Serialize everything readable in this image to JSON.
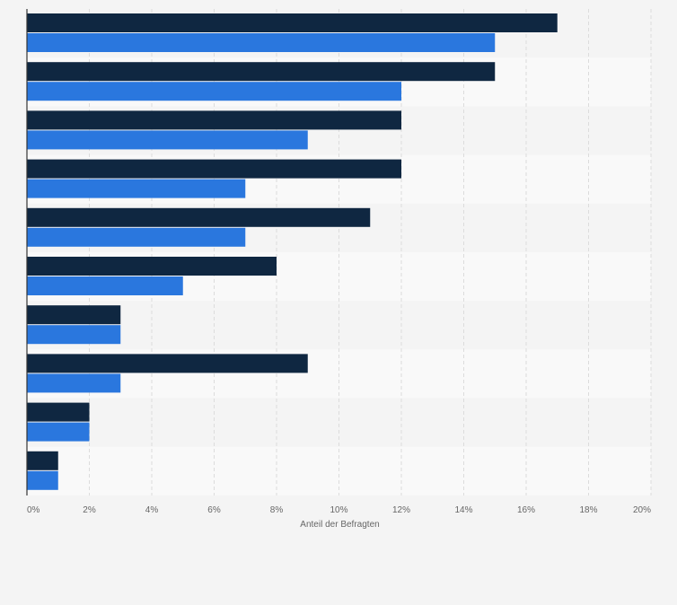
{
  "chart_data": {
    "type": "bar",
    "orientation": "horizontal",
    "categories": [
      "",
      "",
      "",
      "",
      "",
      "",
      "",
      "",
      "",
      ""
    ],
    "series": [
      {
        "name": "",
        "color": "#0f2741",
        "values": [
          17,
          15,
          12,
          12,
          11,
          8,
          3,
          9,
          2,
          1
        ]
      },
      {
        "name": "",
        "color": "#2a77de",
        "values": [
          15,
          12,
          9,
          7,
          7,
          5,
          3,
          3,
          2,
          1
        ]
      }
    ],
    "xlabel": "Anteil der Befragten",
    "xlim": [
      0,
      20
    ],
    "xticks": [
      "0%",
      "2%",
      "4%",
      "6%",
      "8%",
      "10%",
      "12%",
      "14%",
      "16%",
      "18%",
      "20%"
    ],
    "grid": true,
    "legend": "none",
    "colors": {
      "background": "#f4f4f4",
      "band_light": "#f9f9f9",
      "band_dark": "#f4f4f4",
      "axis": "#333333",
      "tick_text": "#666666"
    }
  }
}
